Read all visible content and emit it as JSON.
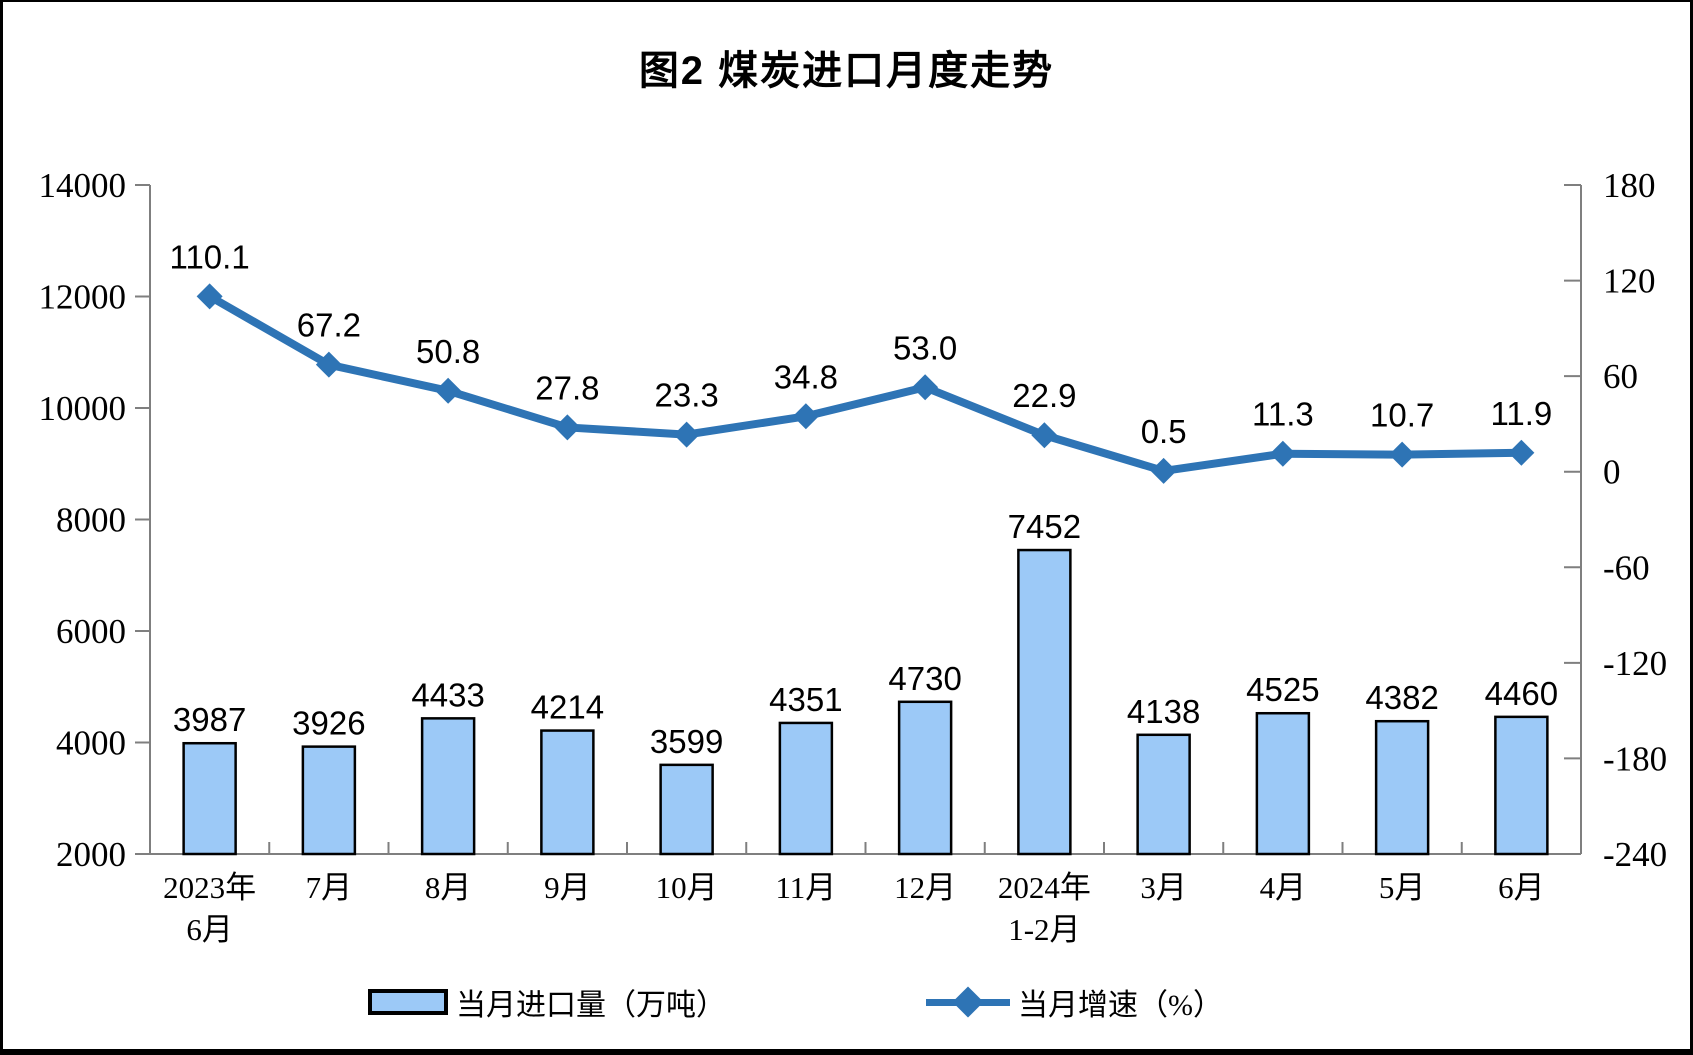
{
  "title": "图2 煤炭进口月度走势",
  "legend": {
    "bar_label": "当月进口量（万吨）",
    "line_label": "当月增速（%）"
  },
  "chart_data": {
    "type": "bar",
    "subtype": "bar+line dual axis",
    "title": "图2 煤炭进口月度走势",
    "categories": [
      [
        "2023年",
        "6月"
      ],
      [
        "7月"
      ],
      [
        "8月"
      ],
      [
        "9月"
      ],
      [
        "10月"
      ],
      [
        "11月"
      ],
      [
        "12月"
      ],
      [
        "2024年",
        "1-2月"
      ],
      [
        "3月"
      ],
      [
        "4月"
      ],
      [
        "5月"
      ],
      [
        "6月"
      ]
    ],
    "series": [
      {
        "name": "当月进口量（万吨）",
        "type": "bar",
        "axis": "left",
        "values": [
          3987,
          3926,
          4433,
          4214,
          3599,
          4351,
          4730,
          7452,
          4138,
          4525,
          4382,
          4460
        ]
      },
      {
        "name": "当月增速（%）",
        "type": "line",
        "axis": "right",
        "values": [
          110.1,
          67.2,
          50.8,
          27.8,
          23.3,
          34.8,
          53.0,
          22.9,
          0.5,
          11.3,
          10.7,
          11.9
        ],
        "label_decimals": 1
      }
    ],
    "left_axis": {
      "min": 2000,
      "max": 14000,
      "step": 2000
    },
    "right_axis": {
      "min": -240,
      "max": 180,
      "step": 60
    },
    "grid": false,
    "legend_position": "bottom",
    "colors": {
      "bar_fill": "#9CC9F7",
      "bar_border": "#000000",
      "line": "#2E74B5",
      "axis": "#7F7F7F",
      "text": "#000000"
    }
  }
}
